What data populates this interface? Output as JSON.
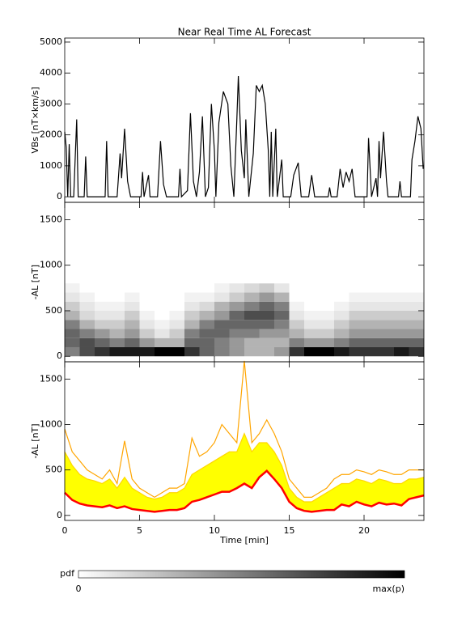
{
  "chart_data": [
    {
      "type": "line",
      "title": "Near Real Time AL Forecast",
      "ylabel": "VBs [nT×km/s]",
      "x": [
        0,
        0.1,
        0.2,
        0.3,
        0.4,
        0.6,
        0.8,
        0.9,
        1.3,
        1.4,
        1.5,
        2.7,
        2.8,
        2.9,
        3.5,
        3.7,
        3.8,
        4.0,
        4.2,
        4.4,
        5.1,
        5.2,
        5.3,
        5.6,
        5.7,
        6.2,
        6.4,
        6.6,
        6.8,
        7.6,
        7.7,
        7.8,
        8.2,
        8.4,
        8.6,
        8.8,
        9.0,
        9.2,
        9.4,
        9.6,
        9.8,
        10.0,
        10.1,
        10.3,
        10.6,
        10.9,
        11.1,
        11.3,
        11.5,
        11.6,
        11.8,
        12.0,
        12.1,
        12.3,
        12.6,
        12.8,
        13.0,
        13.2,
        13.4,
        13.6,
        13.7,
        13.8,
        13.9,
        14.1,
        14.2,
        14.5,
        14.6,
        15.1,
        15.3,
        15.6,
        15.8,
        16.3,
        16.5,
        16.7,
        17.6,
        17.7,
        17.8,
        18.2,
        18.4,
        18.6,
        18.8,
        19.0,
        19.2,
        19.4,
        20.2,
        20.3,
        20.5,
        20.8,
        20.9,
        21.0,
        21.1,
        21.3,
        21.5,
        21.6,
        22.3,
        22.4,
        22.5,
        23.1,
        23.2,
        23.4,
        23.6,
        23.8,
        23.95
      ],
      "series": [
        {
          "color": "#000000",
          "values": [
            2100,
            1600,
            0,
            1700,
            0,
            0,
            2500,
            0,
            0,
            1300,
            0,
            0,
            1800,
            0,
            0,
            1400,
            600,
            2200,
            500,
            0,
            0,
            800,
            0,
            700,
            0,
            0,
            1800,
            400,
            0,
            0,
            900,
            0,
            200,
            2700,
            500,
            0,
            800,
            2600,
            0,
            300,
            3000,
            1500,
            0,
            2400,
            3400,
            3000,
            1000,
            0,
            2500,
            3900,
            1500,
            600,
            2500,
            0,
            1400,
            3600,
            3400,
            3600,
            3000,
            1500,
            0,
            2100,
            0,
            2200,
            0,
            1200,
            0,
            0,
            700,
            1100,
            0,
            0,
            700,
            0,
            0,
            300,
            0,
            0,
            900,
            300,
            800,
            500,
            900,
            0,
            0,
            1900,
            0,
            600,
            0,
            1800,
            600,
            2100,
            500,
            0,
            0,
            500,
            0,
            0,
            1200,
            1800,
            2600,
            2200,
            900
          ]
        }
      ],
      "xlim": [
        0,
        24
      ],
      "xticks": [
        0,
        5,
        10,
        15,
        20
      ],
      "ylim": [
        -180,
        5130
      ],
      "yticks": [
        0,
        1000,
        2000,
        3000,
        4000,
        5000
      ]
    },
    {
      "type": "heatmap",
      "ylabel": "-AL [nT]",
      "xbins": [
        0,
        1,
        2,
        3,
        4,
        5,
        6,
        7,
        8,
        9,
        10,
        11,
        12,
        13,
        14,
        15,
        16,
        17,
        18,
        19,
        20,
        21,
        22,
        23,
        24
      ],
      "ybins": [
        0,
        100,
        200,
        300,
        400,
        500,
        600,
        700,
        800
      ],
      "z": [
        [
          0.5,
          0.7,
          0.8,
          0.9,
          0.9,
          0.9,
          1,
          1,
          0.8,
          0.6,
          0.5,
          0.4,
          0.3,
          0.3,
          0.4,
          0.8,
          1,
          1,
          0.9,
          0.8,
          0.8,
          0.8,
          0.9,
          0.8
        ],
        [
          0.6,
          0.7,
          0.6,
          0.5,
          0.6,
          0.4,
          0.3,
          0.3,
          0.6,
          0.6,
          0.5,
          0.4,
          0.3,
          0.3,
          0.3,
          0.5,
          0.4,
          0.4,
          0.5,
          0.6,
          0.6,
          0.6,
          0.6,
          0.6
        ],
        [
          0.6,
          0.5,
          0.4,
          0.3,
          0.4,
          0.2,
          0.1,
          0.2,
          0.5,
          0.6,
          0.6,
          0.5,
          0.5,
          0.4,
          0.4,
          0.3,
          0.2,
          0.2,
          0.3,
          0.4,
          0.4,
          0.4,
          0.4,
          0.4
        ],
        [
          0.5,
          0.3,
          0.2,
          0.2,
          0.3,
          0.1,
          0.05,
          0.1,
          0.3,
          0.5,
          0.6,
          0.6,
          0.6,
          0.6,
          0.5,
          0.2,
          0.1,
          0.1,
          0.2,
          0.3,
          0.3,
          0.3,
          0.3,
          0.3
        ],
        [
          0.3,
          0.15,
          0.1,
          0.1,
          0.2,
          0.05,
          0,
          0.05,
          0.2,
          0.3,
          0.4,
          0.6,
          0.7,
          0.7,
          0.6,
          0.1,
          0.05,
          0.05,
          0.1,
          0.2,
          0.2,
          0.2,
          0.2,
          0.2
        ],
        [
          0.2,
          0.1,
          0.05,
          0.05,
          0.1,
          0,
          0,
          0,
          0.1,
          0.15,
          0.3,
          0.4,
          0.5,
          0.6,
          0.5,
          0.05,
          0,
          0,
          0.05,
          0.1,
          0.1,
          0.1,
          0.1,
          0.1
        ],
        [
          0.1,
          0.05,
          0,
          0,
          0.05,
          0,
          0,
          0,
          0.05,
          0.05,
          0.1,
          0.2,
          0.3,
          0.4,
          0.3,
          0,
          0,
          0,
          0,
          0.05,
          0.05,
          0.05,
          0.05,
          0.05
        ],
        [
          0.05,
          0,
          0,
          0,
          0,
          0,
          0,
          0,
          0,
          0,
          0.05,
          0.1,
          0.15,
          0.2,
          0.1,
          0,
          0,
          0,
          0,
          0,
          0,
          0,
          0,
          0
        ]
      ],
      "xlim": [
        0,
        24
      ],
      "xticks": [
        0,
        5,
        10,
        15,
        20
      ],
      "ylim": [
        -60,
        1690
      ],
      "yticks": [
        0,
        500,
        1000,
        1500
      ]
    },
    {
      "type": "band",
      "ylabel": "-AL [nT]",
      "xlabel": "Time [min]",
      "x": [
        0,
        0.5,
        1,
        1.5,
        2,
        2.5,
        3,
        3.5,
        4,
        4.5,
        5,
        5.5,
        6,
        6.5,
        7,
        7.5,
        8,
        8.5,
        9,
        9.5,
        10,
        10.5,
        11,
        11.5,
        12,
        12.5,
        13,
        13.5,
        14,
        14.5,
        15,
        15.5,
        16,
        16.5,
        17,
        17.5,
        18,
        18.5,
        19,
        19.5,
        20,
        20.5,
        21,
        21.5,
        22,
        22.5,
        23,
        23.5,
        24
      ],
      "series": [
        {
          "color": "#ffa500",
          "values": [
            950,
            700,
            600,
            500,
            450,
            400,
            500,
            350,
            820,
            400,
            300,
            250,
            200,
            250,
            300,
            300,
            350,
            850,
            650,
            700,
            800,
            1000,
            900,
            800,
            1700,
            800,
            900,
            1050,
            900,
            700,
            400,
            300,
            200,
            200,
            250,
            300,
            400,
            450,
            450,
            500,
            480,
            450,
            500,
            480,
            450,
            450,
            500,
            500,
            500
          ]
        },
        {
          "color": "#ffd700",
          "fill": "#ffff00",
          "fill_to": 2,
          "values": [
            700,
            550,
            450,
            400,
            380,
            350,
            400,
            300,
            420,
            300,
            250,
            200,
            180,
            200,
            250,
            250,
            300,
            450,
            500,
            550,
            600,
            650,
            700,
            700,
            900,
            700,
            800,
            800,
            700,
            550,
            300,
            200,
            150,
            150,
            200,
            250,
            300,
            350,
            350,
            400,
            380,
            350,
            400,
            380,
            350,
            350,
            400,
            400,
            420
          ]
        },
        {
          "color": "#ff0000",
          "width": 2.5,
          "values": [
            250,
            170,
            130,
            110,
            100,
            90,
            110,
            80,
            100,
            70,
            60,
            50,
            40,
            50,
            60,
            60,
            80,
            150,
            170,
            200,
            230,
            260,
            260,
            300,
            350,
            300,
            420,
            490,
            400,
            300,
            150,
            80,
            50,
            40,
            50,
            60,
            60,
            120,
            100,
            150,
            120,
            100,
            140,
            120,
            130,
            110,
            180,
            200,
            220
          ]
        }
      ],
      "xlim": [
        0,
        24
      ],
      "xticks": [
        0,
        5,
        10,
        15,
        20
      ],
      "ylim": [
        -55,
        1690
      ],
      "yticks": [
        0,
        500,
        1000,
        1500
      ]
    }
  ],
  "colorbar": {
    "label": "pdf",
    "min_label": "0",
    "max_label": "max(p)"
  }
}
